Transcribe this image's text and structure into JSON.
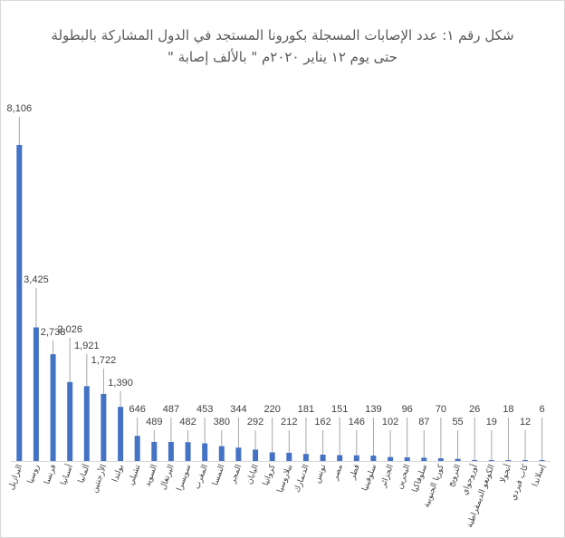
{
  "chart_data": {
    "type": "bar",
    "title": "شكل رقم ١: عدد الإصابات المسجلة بكورونا المستجد في الدول المشاركة بالبطولة",
    "subtitle": "حتى يوم ١٢ يناير ٢٠٢٠م \" بالألف إصابة \"",
    "xlabel": "",
    "ylabel": "",
    "grid": false,
    "legend": "none",
    "categories": [
      "البرازيل",
      "روسيا",
      "فرنسا",
      "أسبانيا",
      "ألمانيا",
      "الأرجنتين",
      "بولندا",
      "تشيلي",
      "السويد",
      "البرتغال",
      "سويسرا",
      "المغرب",
      "النمسا",
      "المجر",
      "اليابان",
      "كرواتيا",
      "بيلاروسيا",
      "الدنمارك",
      "تونس",
      "مصر",
      "قطر",
      "سلوفينيا",
      "الجزائر",
      "البحرين",
      "سلوفاكيا",
      "كوريا الجنوبية",
      "النرويج",
      "أوروجواي",
      "الكونغو الديمقراطية",
      "أنجولا",
      "كاب فيردي",
      "إسلاندا"
    ],
    "values": [
      8106,
      3425,
      2738,
      2026,
      1921,
      1722,
      1390,
      646,
      489,
      487,
      482,
      453,
      380,
      344,
      292,
      220,
      212,
      181,
      162,
      151,
      146,
      139,
      102,
      96,
      87,
      70,
      55,
      26,
      19,
      18,
      12,
      6
    ],
    "value_labels": [
      "8,106",
      "3,425",
      "2,738",
      "2,026",
      "1,921",
      "1,722",
      "1,390",
      "646",
      "489",
      "487",
      "482",
      "453",
      "380",
      "344",
      "292",
      "220",
      "212",
      "181",
      "162",
      "151",
      "146",
      "139",
      "102",
      "96",
      "87",
      "70",
      "55",
      "26",
      "19",
      "18",
      "12",
      "6"
    ],
    "colors": {
      "bar": "#4472C4",
      "leader": "#A6A6A6",
      "axis": "#D9D9D9",
      "text": "#404040",
      "title": "#595959",
      "border": "#D9D9D9"
    }
  }
}
